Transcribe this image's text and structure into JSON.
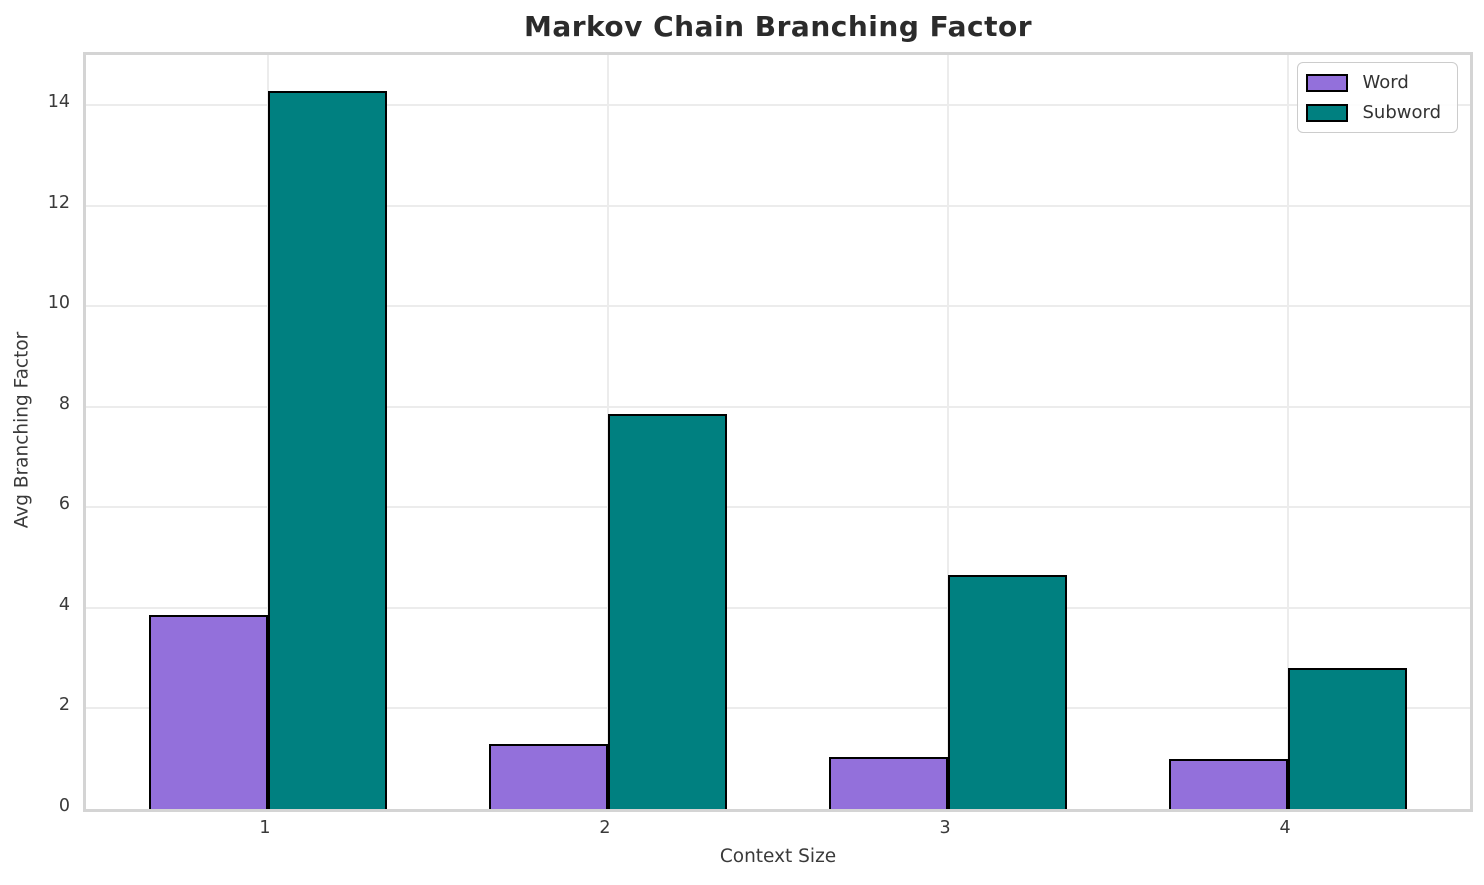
{
  "title": "Markov Chain Branching Factor",
  "colors": {
    "word": "#9370DB",
    "subword": "#008080",
    "bar_edge": "#000000",
    "grid": "#ececec",
    "spine": "#d4d4d4",
    "tick_text": "#3a3a3a",
    "title_text": "#2b2b2b"
  },
  "chart_data": {
    "type": "bar",
    "title": "Markov Chain Branching Factor",
    "xlabel": "Context Size",
    "ylabel": "Avg Branching Factor",
    "categories": [
      "1",
      "2",
      "3",
      "4"
    ],
    "series": [
      {
        "name": "Word",
        "color": "#9370DB",
        "values": [
          3.85,
          1.3,
          1.04,
          1.0
        ]
      },
      {
        "name": "Subword",
        "color": "#008080",
        "values": [
          14.28,
          7.85,
          4.65,
          2.81
        ]
      }
    ],
    "bar_width": 0.35,
    "ylim": [
      0,
      15
    ],
    "yticks": [
      0,
      2,
      4,
      6,
      8,
      10,
      12,
      14
    ],
    "grid": true,
    "legend_position": "upper right"
  }
}
